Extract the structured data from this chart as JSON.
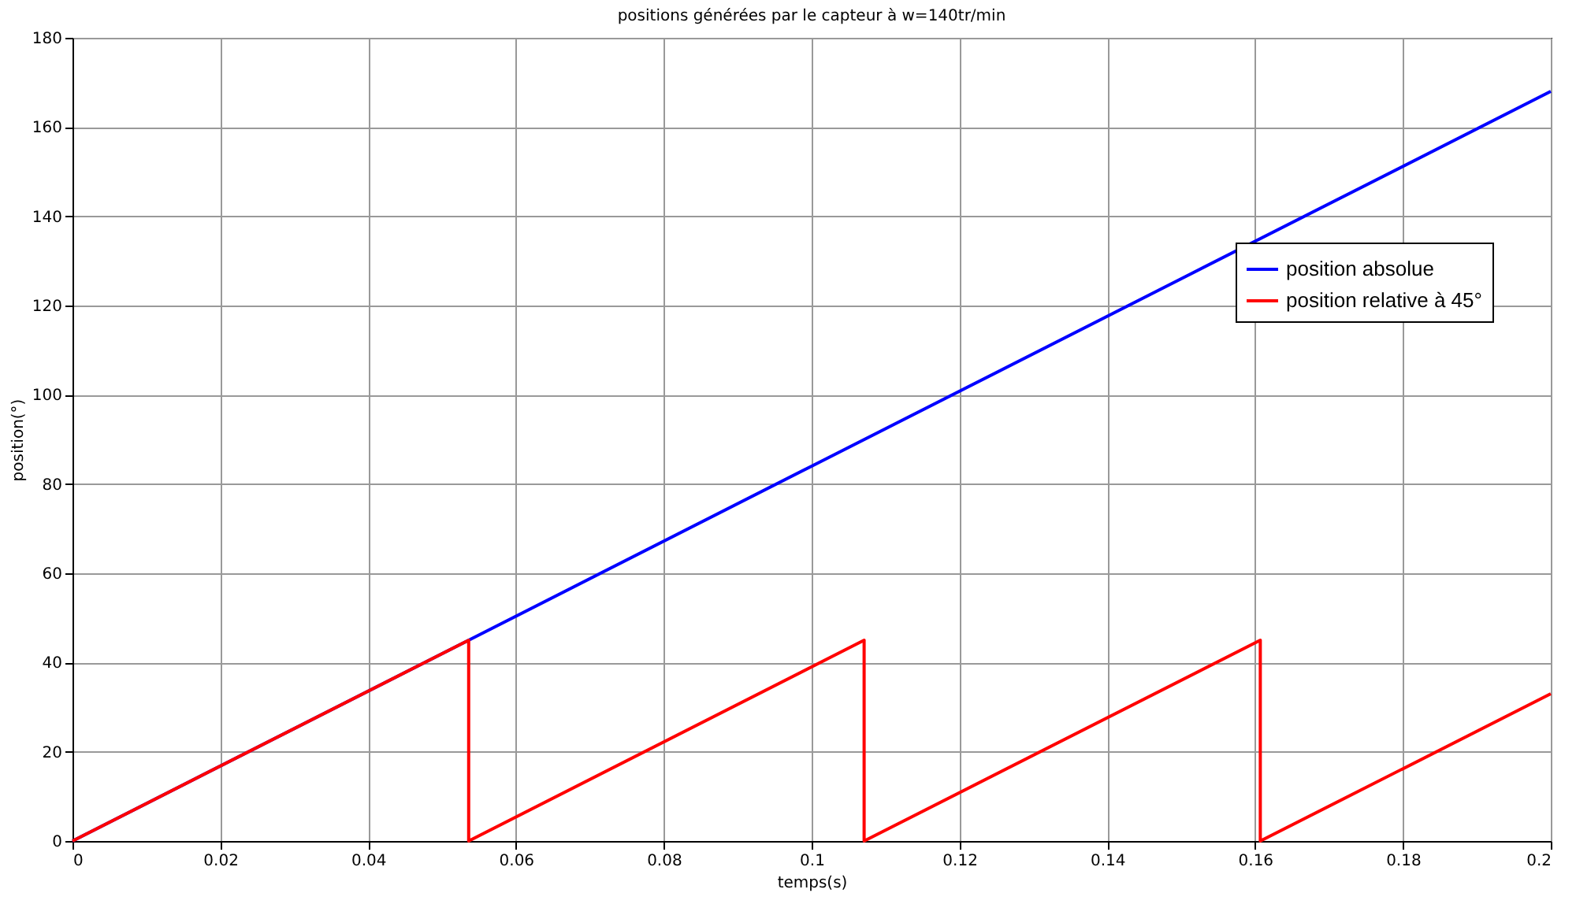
{
  "chart_data": {
    "type": "line",
    "title": "positions générées par le capteur à w=140tr/min",
    "xlabel": "temps(s)",
    "ylabel": "position(°)",
    "series": [
      {
        "name": "position absolue",
        "color": "#0000ff",
        "x": [
          0,
          0.0536,
          0.1,
          0.15,
          0.2
        ],
        "values": [
          0,
          45,
          84,
          126,
          168
        ]
      },
      {
        "name": "position relative à 45°",
        "color": "#ff0000",
        "x": [
          0,
          0.0536,
          0.0536,
          0.1071,
          0.1071,
          0.1607,
          0.1607,
          0.2
        ],
        "values": [
          0,
          45,
          0,
          45,
          0,
          45,
          0,
          33
        ]
      }
    ],
    "xlim": [
      0,
      0.2
    ],
    "ylim": [
      0,
      180
    ],
    "xticks": [
      0,
      0.02,
      0.04,
      0.06,
      0.08,
      0.1,
      0.12,
      0.14,
      0.16,
      0.18,
      0.2
    ],
    "yticks": [
      0,
      20,
      40,
      60,
      80,
      100,
      120,
      140,
      160,
      180
    ],
    "grid": true,
    "legend": "right",
    "line_style": "solid",
    "marker": "none"
  }
}
